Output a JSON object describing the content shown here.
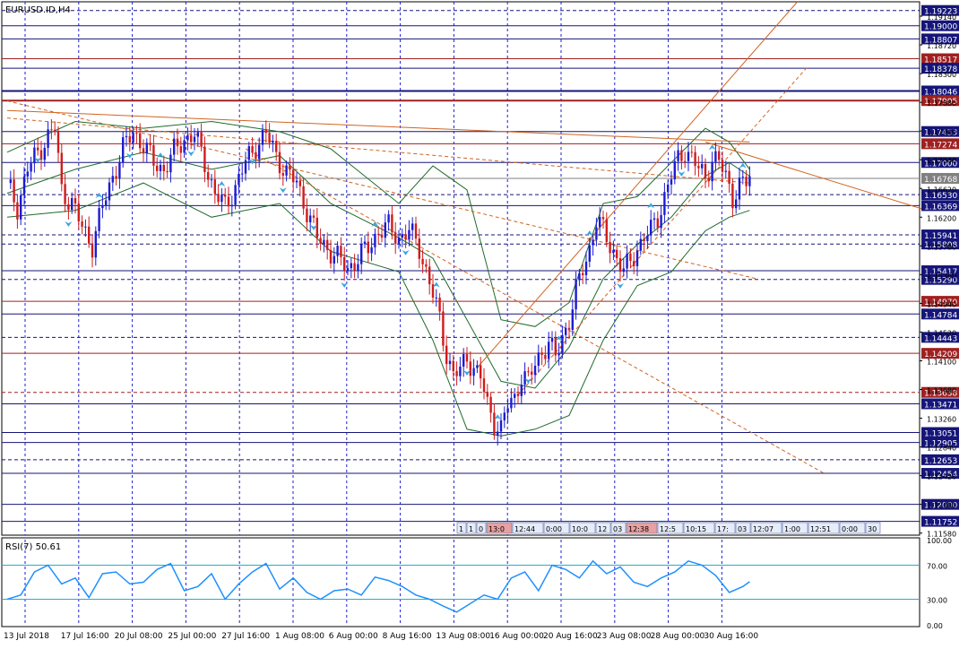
{
  "window_title": "EURUSD.ID,H4",
  "rsi_title": "RSI(7) 50.61",
  "colors": {
    "bull": "#1c1cd0",
    "bear": "#d01c1c",
    "grid": "#1e1ed6",
    "hline_blue": "#15157a",
    "hline_red": "#a02020",
    "trend": "#d26420",
    "bands": "#1f6b2a",
    "rsi": "#1e90ff",
    "level_rsi": "#20b0d0",
    "arrow": "#3aa6e0"
  },
  "chart_data": [
    {
      "type": "candlestick",
      "symbol": "EURUSD.ID",
      "timeframe": "H4",
      "ylim": [
        1.1155,
        1.1935
      ],
      "grid": true,
      "x_tick_labels": [
        "13 Jul 2018",
        "17 Jul 16:00",
        "20 Jul 08:00",
        "25 Jul 00:00",
        "27 Jul 16:00",
        "1 Aug 08:00",
        "6 Aug 00:00",
        "8 Aug 16:00",
        "13 Aug 08:00",
        "16 Aug 00:00",
        "20 Aug 16:00",
        "23 Aug 08:00",
        "28 Aug 00:00",
        "30 Aug 16:00"
      ],
      "y_tick_labels": [
        "1.19140",
        "1.18720",
        "1.18300",
        "1.17880",
        "1.17460",
        "1.17040",
        "1.16620",
        "1.16200",
        "1.15780",
        "1.15360",
        "1.14940",
        "1.14520",
        "1.14100",
        "1.13680",
        "1.13260",
        "1.12840",
        "1.12420",
        "1.12000",
        "1.11580"
      ],
      "price_levels": [
        {
          "label": "1.19223",
          "kind": "blue",
          "style": "dashed"
        },
        {
          "label": "1.19000",
          "kind": "blue",
          "style": "solid"
        },
        {
          "label": "1.18807",
          "kind": "blue",
          "style": "solid"
        },
        {
          "label": "1.18517",
          "kind": "red",
          "style": "solid"
        },
        {
          "label": "1.18378",
          "kind": "blue",
          "style": "solid"
        },
        {
          "label": "1.18046",
          "kind": "blue",
          "style": "thick"
        },
        {
          "label": "1.17905",
          "kind": "red",
          "style": "thick"
        },
        {
          "label": "1.17453",
          "kind": "blue",
          "style": "solid"
        },
        {
          "label": "1.17274",
          "kind": "red",
          "style": "solid"
        },
        {
          "label": "1.17000",
          "kind": "blue",
          "style": "solid"
        },
        {
          "label": "1.16768",
          "kind": "gray",
          "style": "solid"
        },
        {
          "label": "1.16530",
          "kind": "blue",
          "style": "dashed"
        },
        {
          "label": "1.16369",
          "kind": "blue",
          "style": "solid"
        },
        {
          "label": "1.15941",
          "kind": "blue",
          "style": "dashed"
        },
        {
          "label": "1.15808",
          "kind": "blue",
          "style": "dashed"
        },
        {
          "label": "1.15417",
          "kind": "blue",
          "style": "solid"
        },
        {
          "label": "1.15290",
          "kind": "blue",
          "style": "dashed"
        },
        {
          "label": "1.14970",
          "kind": "red",
          "style": "solid"
        },
        {
          "label": "1.14784",
          "kind": "blue",
          "style": "solid"
        },
        {
          "label": "1.14443",
          "kind": "blue",
          "style": "dashed"
        },
        {
          "label": "1.14209",
          "kind": "red",
          "style": "solid"
        },
        {
          "label": "1.13638",
          "kind": "red",
          "style": "dashed"
        },
        {
          "label": "1.13471",
          "kind": "blue",
          "style": "solid"
        },
        {
          "label": "1.13051",
          "kind": "blue",
          "style": "solid"
        },
        {
          "label": "1.12905",
          "kind": "blue",
          "style": "solid"
        },
        {
          "label": "1.12653",
          "kind": "blue",
          "style": "dashed"
        },
        {
          "label": "1.12454",
          "kind": "blue",
          "style": "solid"
        },
        {
          "label": "1.12000",
          "kind": "blue",
          "style": "solid"
        },
        {
          "label": "1.11752",
          "kind": "blue",
          "style": "solid"
        }
      ],
      "price_path": [
        [
          0,
          1.167
        ],
        [
          3,
          1.1635
        ],
        [
          6,
          1.169
        ],
        [
          9,
          1.1715
        ],
        [
          12,
          1.1738
        ],
        [
          14,
          1.175
        ],
        [
          16,
          1.166
        ],
        [
          19,
          1.164
        ],
        [
          22,
          1.1605
        ],
        [
          25,
          1.158
        ],
        [
          28,
          1.1635
        ],
        [
          31,
          1.168
        ],
        [
          34,
          1.172
        ],
        [
          37,
          1.1745
        ],
        [
          40,
          1.1725
        ],
        [
          43,
          1.17
        ],
        [
          46,
          1.169
        ],
        [
          49,
          1.1715
        ],
        [
          52,
          1.1735
        ],
        [
          55,
          1.174
        ],
        [
          58,
          1.17
        ],
        [
          61,
          1.1655
        ],
        [
          64,
          1.1635
        ],
        [
          67,
          1.1665
        ],
        [
          70,
          1.17
        ],
        [
          73,
          1.1725
        ],
        [
          76,
          1.1742
        ],
        [
          79,
          1.171
        ],
        [
          82,
          1.1685
        ],
        [
          85,
          1.167
        ],
        [
          88,
          1.163
        ],
        [
          91,
          1.159
        ],
        [
          94,
          1.1575
        ],
        [
          97,
          1.156
        ],
        [
          100,
          1.1545
        ],
        [
          103,
          1.156
        ],
        [
          106,
          1.1575
        ],
        [
          109,
          1.16
        ],
        [
          112,
          1.1605
        ],
        [
          115,
          1.159
        ],
        [
          118,
          1.16
        ],
        [
          121,
          1.1575
        ],
        [
          124,
          1.1525
        ],
        [
          127,
          1.147
        ],
        [
          129,
          1.142
        ],
        [
          131,
          1.139
        ],
        [
          133,
          1.1395
        ],
        [
          135,
          1.1415
        ],
        [
          137,
          1.14
        ],
        [
          139,
          1.1385
        ],
        [
          141,
          1.1345
        ],
        [
          143,
          1.132
        ],
        [
          145,
          1.131
        ],
        [
          147,
          1.1345
        ],
        [
          149,
          1.1355
        ],
        [
          151,
          1.139
        ],
        [
          153,
          1.138
        ],
        [
          155,
          1.1405
        ],
        [
          157,
          1.1425
        ],
        [
          159,
          1.1435
        ],
        [
          161,
          1.1415
        ],
        [
          163,
          1.1445
        ],
        [
          165,
          1.147
        ],
        [
          167,
          1.151
        ],
        [
          169,
          1.1545
        ],
        [
          171,
          1.1575
        ],
        [
          173,
          1.1615
        ],
        [
          175,
          1.16
        ],
        [
          177,
          1.158
        ],
        [
          179,
          1.156
        ],
        [
          181,
          1.154
        ],
        [
          183,
          1.1555
        ],
        [
          185,
          1.1575
        ],
        [
          187,
          1.159
        ],
        [
          189,
          1.16
        ],
        [
          191,
          1.162
        ],
        [
          193,
          1.165
        ],
        [
          195,
          1.168
        ],
        [
          197,
          1.1705
        ],
        [
          199,
          1.172
        ],
        [
          201,
          1.1705
        ],
        [
          203,
          1.169
        ],
        [
          205,
          1.168
        ],
        [
          207,
          1.1705
        ],
        [
          209,
          1.17
        ],
        [
          211,
          1.168
        ],
        [
          213,
          1.165
        ],
        [
          215,
          1.1665
        ],
        [
          217,
          1.167
        ],
        [
          218,
          1.168
        ]
      ],
      "bands": {
        "upper": [
          [
            0,
            1.1715
          ],
          [
            20,
            1.176
          ],
          [
            40,
            1.175
          ],
          [
            60,
            1.176
          ],
          [
            80,
            1.1745
          ],
          [
            95,
            1.172
          ],
          [
            115,
            1.164
          ],
          [
            125,
            1.1695
          ],
          [
            135,
            1.166
          ],
          [
            145,
            1.147
          ],
          [
            155,
            1.146
          ],
          [
            165,
            1.1495
          ],
          [
            175,
            1.164
          ],
          [
            185,
            1.165
          ],
          [
            195,
            1.17
          ],
          [
            205,
            1.175
          ],
          [
            212,
            1.173
          ],
          [
            218,
            1.169
          ]
        ],
        "middle": [
          [
            0,
            1.1655
          ],
          [
            20,
            1.169
          ],
          [
            40,
            1.1715
          ],
          [
            60,
            1.169
          ],
          [
            80,
            1.171
          ],
          [
            95,
            1.164
          ],
          [
            115,
            1.159
          ],
          [
            125,
            1.156
          ],
          [
            135,
            1.147
          ],
          [
            145,
            1.138
          ],
          [
            155,
            1.137
          ],
          [
            165,
            1.143
          ],
          [
            175,
            1.153
          ],
          [
            185,
            1.158
          ],
          [
            195,
            1.162
          ],
          [
            205,
            1.168
          ],
          [
            212,
            1.17
          ],
          [
            218,
            1.168
          ]
        ],
        "lower": [
          [
            0,
            1.162
          ],
          [
            20,
            1.163
          ],
          [
            40,
            1.167
          ],
          [
            60,
            1.162
          ],
          [
            80,
            1.164
          ],
          [
            95,
            1.157
          ],
          [
            115,
            1.154
          ],
          [
            125,
            1.144
          ],
          [
            135,
            1.131
          ],
          [
            145,
            1.13
          ],
          [
            155,
            1.131
          ],
          [
            165,
            1.133
          ],
          [
            175,
            1.144
          ],
          [
            185,
            1.152
          ],
          [
            195,
            1.154
          ],
          [
            205,
            1.16
          ],
          [
            212,
            1.162
          ],
          [
            218,
            1.163
          ]
        ]
      },
      "trendlines": [
        {
          "from": [
            0,
            1.1776
          ],
          "to": [
            218,
            1.173
          ],
          "style": "solid"
        },
        {
          "from": [
            0,
            1.1765
          ],
          "to": [
            218,
            1.167
          ],
          "style": "dashed"
        },
        {
          "from": [
            0,
            1.179
          ],
          "to": [
            220,
            1.153
          ],
          "style": "dashed"
        },
        {
          "from": [
            70,
            1.172
          ],
          "to": [
            240,
            1.1245
          ],
          "style": "dashed"
        },
        {
          "from": [
            138,
            1.14
          ],
          "to": [
            232,
            1.1935
          ],
          "style": "solid"
        },
        {
          "from": [
            150,
            1.136
          ],
          "to": [
            235,
            1.184
          ],
          "style": "dashed"
        },
        {
          "from": [
            205,
            1.173
          ],
          "to": [
            270,
            1.163
          ],
          "style": "solid"
        }
      ],
      "time_labels": [
        "1",
        "1",
        "0",
        "13:0",
        "12:44",
        "0:00",
        "10:0",
        "12",
        "03",
        "12:38",
        "12:5",
        "10:15",
        "17:",
        "03",
        "12:07",
        "1:00",
        "12:51",
        "0:00",
        "30"
      ]
    },
    {
      "type": "line",
      "indicator": "RSI(7)",
      "current": 50.61,
      "ylim": [
        0,
        100
      ],
      "y_tick_labels": [
        "100.00",
        "70.00",
        "30.00",
        "0.00"
      ],
      "levels": [
        70,
        30
      ],
      "x": [
        0,
        4,
        8,
        12,
        16,
        20,
        24,
        28,
        32,
        36,
        40,
        44,
        48,
        52,
        56,
        60,
        64,
        68,
        72,
        76,
        80,
        84,
        88,
        92,
        96,
        100,
        104,
        108,
        112,
        116,
        120,
        124,
        128,
        132,
        136,
        140,
        144,
        148,
        152,
        156,
        160,
        164,
        168,
        172,
        176,
        180,
        184,
        188,
        192,
        196,
        200,
        204,
        208,
        212,
        216,
        218
      ],
      "values": [
        30,
        35,
        62,
        70,
        48,
        55,
        32,
        60,
        62,
        48,
        50,
        65,
        72,
        40,
        45,
        60,
        30,
        48,
        62,
        72,
        42,
        55,
        38,
        30,
        40,
        42,
        35,
        56,
        52,
        45,
        35,
        30,
        22,
        15,
        25,
        35,
        30,
        55,
        62,
        40,
        70,
        65,
        55,
        75,
        60,
        68,
        50,
        45,
        55,
        62,
        75,
        70,
        58,
        38,
        45,
        50.61
      ]
    }
  ]
}
